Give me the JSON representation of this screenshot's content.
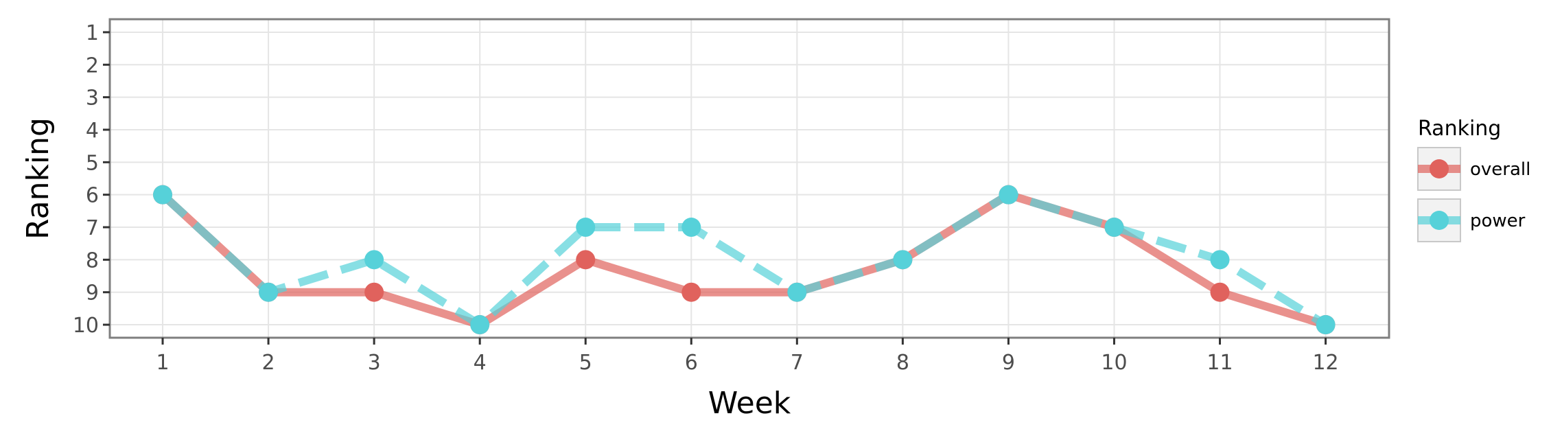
{
  "chart_data": {
    "type": "line",
    "xlabel": "Week",
    "ylabel": "Ranking",
    "x": [
      1,
      2,
      3,
      4,
      5,
      6,
      7,
      8,
      9,
      10,
      11,
      12
    ],
    "xlim": [
      0.5,
      12.6
    ],
    "ylim": [
      0.6,
      10.4
    ],
    "y_reversed": true,
    "y_ticks": [
      1,
      2,
      3,
      4,
      5,
      6,
      7,
      8,
      9,
      10
    ],
    "grid": true,
    "series": [
      {
        "name": "overall",
        "color": "#E0625D",
        "line_style": "solid",
        "values": [
          6,
          9,
          9,
          10,
          8,
          9,
          9,
          8,
          6,
          7,
          9,
          10
        ]
      },
      {
        "name": "power",
        "color": "#56D1D9",
        "line_style": "dashed",
        "values": [
          6,
          9,
          8,
          10,
          7,
          7,
          9,
          8,
          6,
          7,
          8,
          10
        ]
      }
    ],
    "legend": {
      "title": "Ranking",
      "placement": "right"
    }
  }
}
